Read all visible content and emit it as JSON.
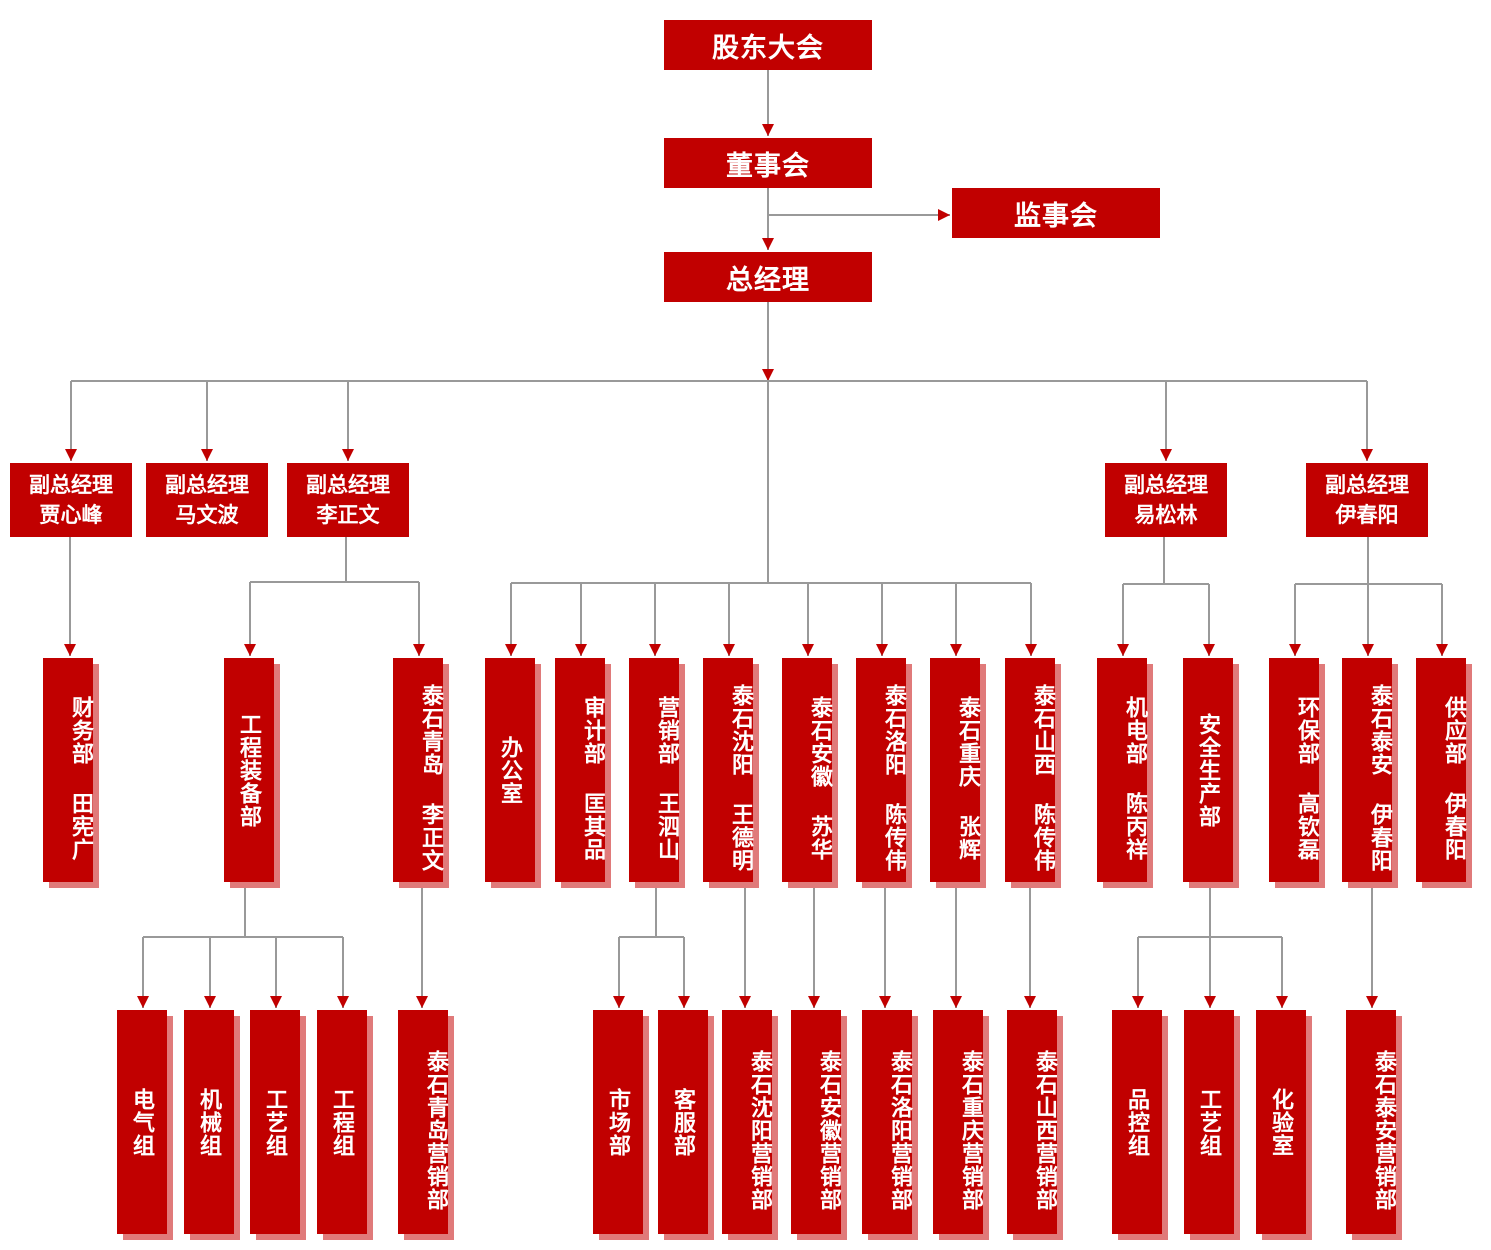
{
  "colors": {
    "box": "#c10000",
    "shadow": "#e07a7a",
    "line": "#999999",
    "arrow": "#c10000"
  },
  "top": {
    "shareholders": "股东大会",
    "board": "董事会",
    "supervisors": "监事会",
    "gm": "总经理"
  },
  "vps": [
    {
      "title": "副总经理",
      "name": "贾心峰"
    },
    {
      "title": "副总经理",
      "name": "马文波"
    },
    {
      "title": "副总经理",
      "name": "李正文"
    },
    {
      "title": "副总经理",
      "name": "易松林"
    },
    {
      "title": "副总经理",
      "name": "伊春阳"
    }
  ],
  "departments": [
    "财务部 田宪广",
    "工程装备部",
    "泰石青岛 李正文",
    "办公室",
    "审计部 匡其品",
    "营销部 王泗山",
    "泰石沈阳 王德明",
    "泰石安徽 苏华",
    "泰石洛阳 陈传伟",
    "泰石重庆 张辉",
    "泰石山西 陈传伟",
    "机电部 陈丙祥",
    "安全生产部",
    "环保部 高钦磊",
    "泰石泰安 伊春阳",
    "供应部 伊春阳"
  ],
  "units": [
    "电气组",
    "机械组",
    "工艺组",
    "工程组",
    "泰石青岛营销部",
    "市场部",
    "客服部",
    "泰石沈阳营销部",
    "泰石安徽营销部",
    "泰石洛阳营销部",
    "泰石重庆营销部",
    "泰石山西营销部",
    "品控组",
    "工艺组",
    "化验室",
    "泰石泰安营销部"
  ]
}
